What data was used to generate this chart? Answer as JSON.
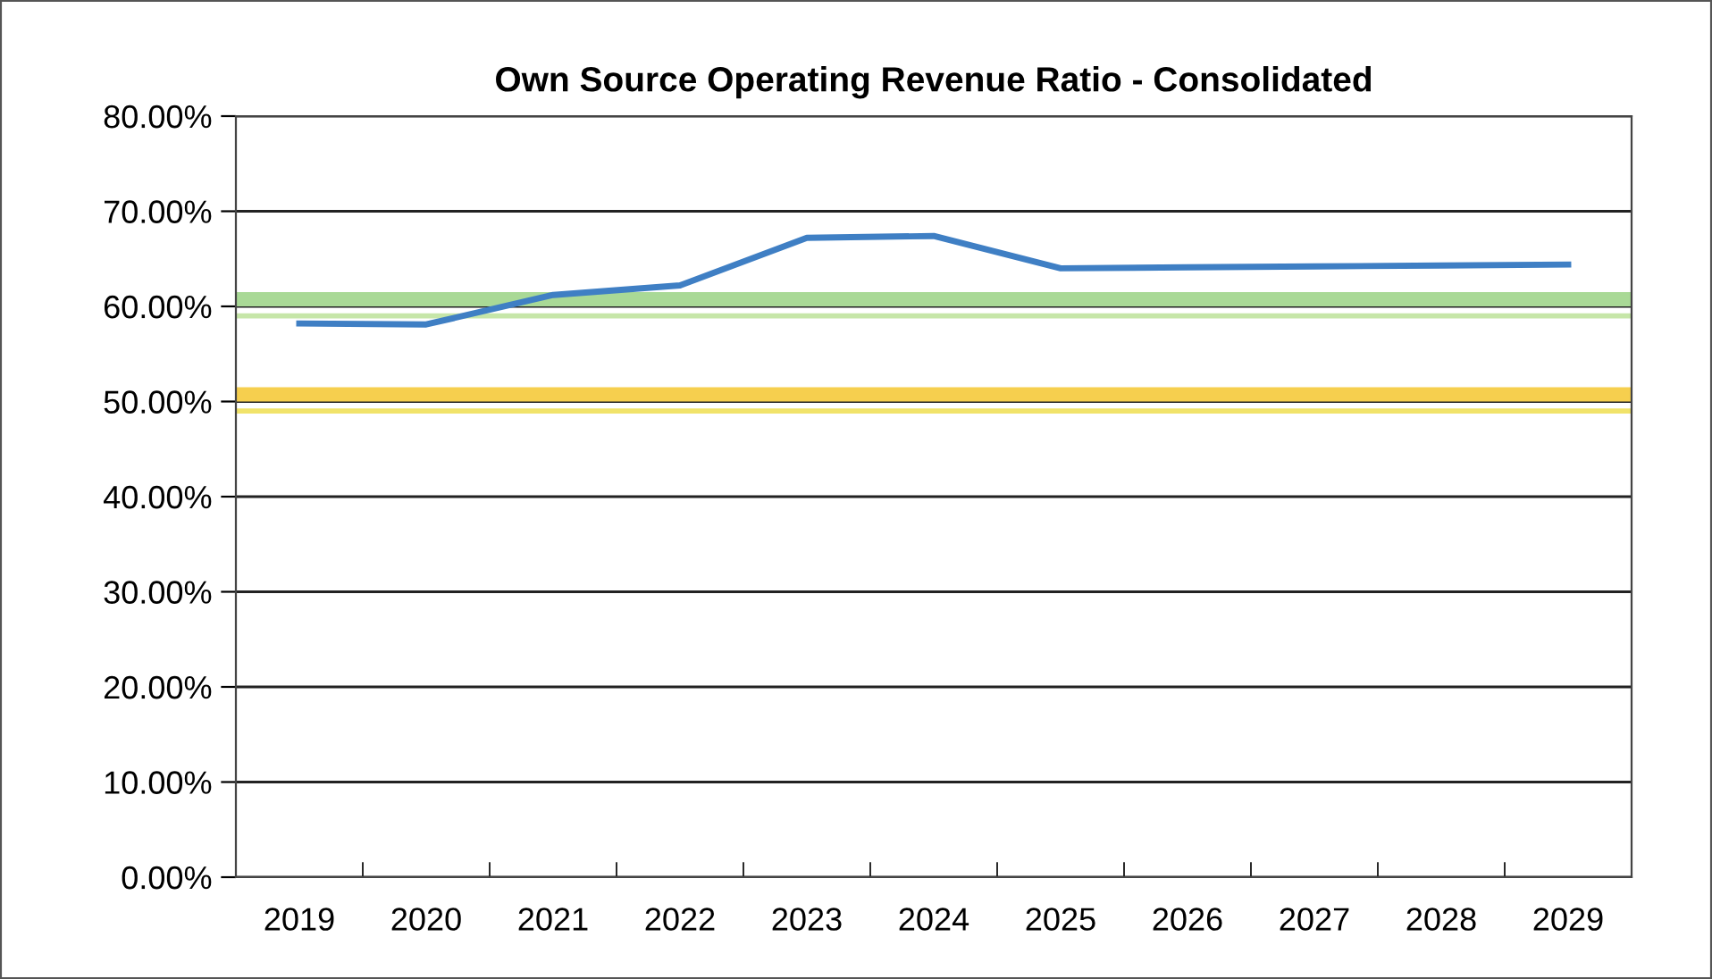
{
  "chart_data": {
    "type": "line",
    "title": "Own Source Operating Revenue Ratio - Consolidated",
    "categories": [
      "2019",
      "2020",
      "2021",
      "2022",
      "2023",
      "2024",
      "2025",
      "2026",
      "2027",
      "2028",
      "2029"
    ],
    "series": [
      {
        "color": "#3f7fc4",
        "values": [
          58.2,
          58.1,
          61.2,
          62.2,
          67.2,
          67.4,
          64.0,
          64.1,
          64.2,
          64.3,
          64.4
        ]
      }
    ],
    "ylim": [
      0,
      80
    ],
    "yticks": [
      {
        "value": 0,
        "label": "0.00%"
      },
      {
        "value": 10,
        "label": "10.00%"
      },
      {
        "value": 20,
        "label": "20.00%"
      },
      {
        "value": 30,
        "label": "30.00%"
      },
      {
        "value": 40,
        "label": "40.00%"
      },
      {
        "value": 50,
        "label": "50.00%"
      },
      {
        "value": 60,
        "label": "60.00%"
      },
      {
        "value": 70,
        "label": "70.00%"
      },
      {
        "value": 80,
        "label": "80.00%"
      }
    ],
    "bands": [
      {
        "axis": "y",
        "from": 60,
        "to": 61.5,
        "color": "#a9d996"
      },
      {
        "axis": "y",
        "from": 50,
        "to": 51.5,
        "color": "#f6cf4e"
      }
    ],
    "ref_lines": [
      {
        "axis": "y",
        "value": 59,
        "color": "#c6e6a8",
        "line_style": "solid"
      },
      {
        "axis": "y",
        "value": 49,
        "color": "#f1e36a",
        "line_style": "solid"
      }
    ],
    "grid": "y",
    "marker": "none",
    "line_style": "solid"
  }
}
